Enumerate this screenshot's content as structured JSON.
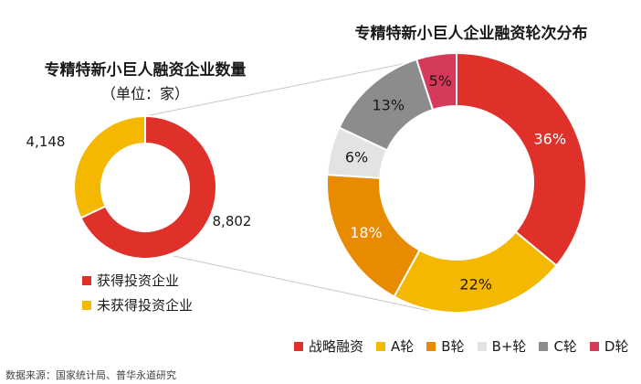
{
  "chart_data": [
    {
      "type": "pie",
      "variant": "donut",
      "title": "专精特新小巨人融资企业数量",
      "subtitle": "（单位：家）",
      "categories": [
        "获得投资企业",
        "未获得投资企业"
      ],
      "values": [
        8802,
        4148
      ],
      "labels": [
        "8,802",
        "4,148"
      ],
      "colors": [
        "#E0302A",
        "#F5B800"
      ],
      "legend": "bottom-left"
    },
    {
      "type": "pie",
      "variant": "donut",
      "title": "专精特新小巨人企业融资轮次分布",
      "categories": [
        "战略融资",
        "A轮",
        "B轮",
        "B+轮",
        "C轮",
        "D轮"
      ],
      "values": [
        36,
        22,
        18,
        6,
        13,
        5
      ],
      "labels": [
        "36%",
        "22%",
        "18%",
        "6%",
        "13%",
        "5%"
      ],
      "colors": [
        "#E0302A",
        "#F5B800",
        "#E98B00",
        "#E3E3E3",
        "#8C8C8C",
        "#D53A5A"
      ],
      "legend": "bottom"
    }
  ],
  "source": "数据来源：国家统计局、普华永道研究"
}
